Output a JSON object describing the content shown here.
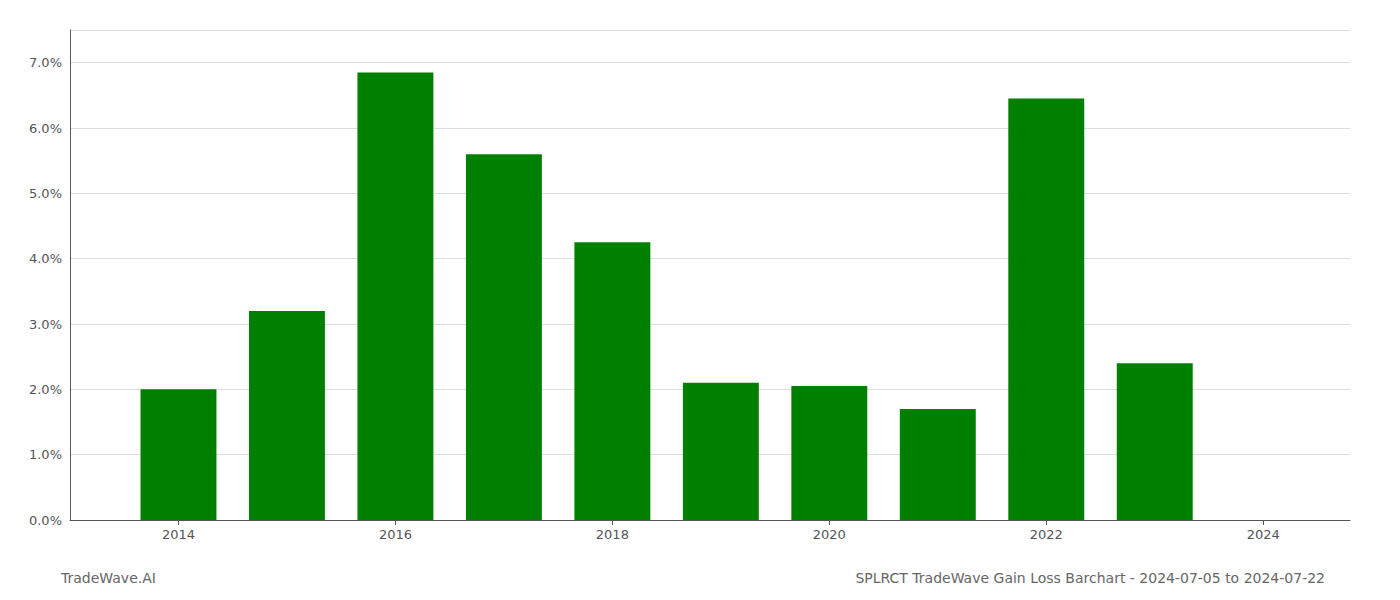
{
  "chart_data": {
    "type": "bar",
    "title": "SPLRCT TradeWave Gain Loss Barchart - 2024-07-05 to 2024-07-22",
    "annotations": [
      "TradeWave.AI"
    ],
    "x": [
      2014,
      2015,
      2016,
      2017,
      2018,
      2019,
      2020,
      2021,
      2022,
      2023
    ],
    "values": [
      0.02,
      0.032,
      0.0685,
      0.056,
      0.0425,
      0.021,
      0.0205,
      0.017,
      0.0645,
      0.024
    ],
    "color": "#008000",
    "xlim": [
      2013.0,
      2024.8
    ],
    "xticks": [
      2014,
      2016,
      2018,
      2020,
      2022,
      2024
    ],
    "ylim": [
      0,
      0.075
    ],
    "yticks": [
      {
        "value": 0.0,
        "label": "0.0%"
      },
      {
        "value": 0.01,
        "label": "1.0%"
      },
      {
        "value": 0.02,
        "label": "2.0%"
      },
      {
        "value": 0.03,
        "label": "3.0%"
      },
      {
        "value": 0.04,
        "label": "4.0%"
      },
      {
        "value": 0.05,
        "label": "5.0%"
      },
      {
        "value": 0.06,
        "label": "6.0%"
      },
      {
        "value": 0.07,
        "label": "7.0%"
      }
    ],
    "grid": true
  }
}
